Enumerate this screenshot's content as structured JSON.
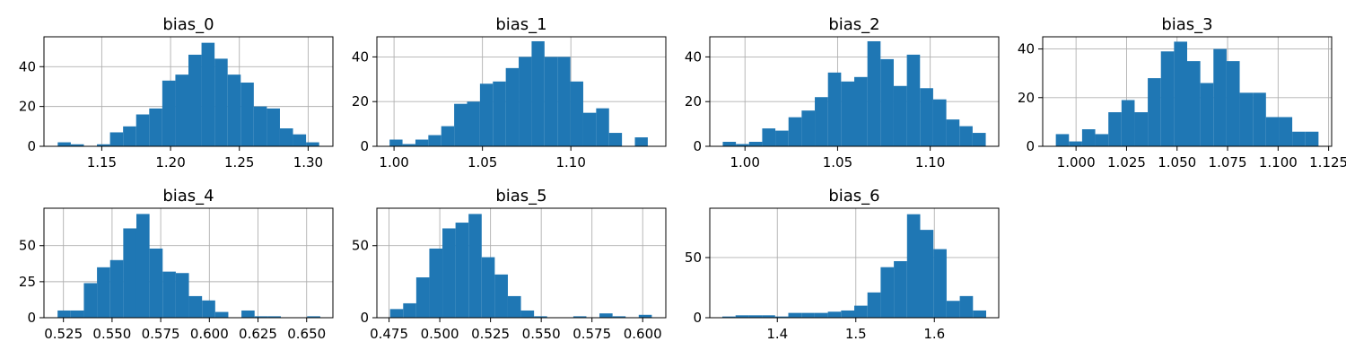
{
  "figure": {
    "bar_color": "#1f77b4",
    "grid_color": "#b0b0b0",
    "axis_color": "#000000",
    "background": "#ffffff"
  },
  "chart_data": [
    {
      "type": "bar",
      "title": "bias_0",
      "bin_start": 1.118,
      "bin_width": 0.0095,
      "values": [
        2,
        1,
        0,
        1,
        7,
        10,
        16,
        19,
        33,
        36,
        46,
        52,
        44,
        36,
        32,
        20,
        19,
        9,
        6,
        2
      ],
      "xlim": [
        1.108,
        1.318
      ],
      "ylim": [
        0,
        55
      ],
      "xticks": [
        1.15,
        1.2,
        1.25,
        1.3
      ],
      "xtick_labels": [
        "1.15",
        "1.20",
        "1.25",
        "1.30"
      ],
      "yticks": [
        0,
        20,
        40
      ],
      "ytick_labels": [
        "0",
        "20",
        "40"
      ],
      "grid": true
    },
    {
      "type": "bar",
      "title": "bias_1",
      "bin_start": 0.9975,
      "bin_width": 0.0073,
      "values": [
        3,
        1,
        3,
        5,
        9,
        19,
        20,
        28,
        29,
        35,
        40,
        47,
        40,
        40,
        29,
        15,
        17,
        6,
        0,
        4
      ],
      "xlim": [
        0.9903,
        1.1537
      ],
      "ylim": [
        0,
        49
      ],
      "xticks": [
        1.0,
        1.05,
        1.1
      ],
      "xtick_labels": [
        "1.00",
        "1.05",
        "1.10"
      ],
      "yticks": [
        0,
        20,
        40
      ],
      "ytick_labels": [
        "0",
        "20",
        "40"
      ],
      "grid": true
    },
    {
      "type": "bar",
      "title": "bias_2",
      "bin_start": 0.988,
      "bin_width": 0.0071,
      "values": [
        2,
        1,
        2,
        8,
        7,
        13,
        16,
        22,
        33,
        29,
        31,
        47,
        39,
        27,
        41,
        26,
        21,
        12,
        9,
        6
      ],
      "xlim": [
        0.981,
        1.137
      ],
      "ylim": [
        0,
        49
      ],
      "xticks": [
        1.0,
        1.05,
        1.1
      ],
      "xtick_labels": [
        "1.00",
        "1.05",
        "1.10"
      ],
      "yticks": [
        0,
        20,
        40
      ],
      "ytick_labels": [
        "0",
        "20",
        "40"
      ],
      "grid": true
    },
    {
      "type": "bar",
      "title": "bias_3",
      "bin_start": 0.99,
      "bin_width": 0.0065,
      "values": [
        5,
        2,
        7,
        5,
        14,
        19,
        14,
        28,
        39,
        43,
        35,
        26,
        40,
        35,
        22,
        22,
        12,
        12,
        6,
        6
      ],
      "xlim": [
        0.9835,
        1.1265
      ],
      "ylim": [
        0,
        45
      ],
      "xticks": [
        1.0,
        1.025,
        1.05,
        1.075,
        1.1,
        1.125
      ],
      "xtick_labels": [
        "1.000",
        "1.025",
        "1.050",
        "1.075",
        "1.100",
        "1.125"
      ],
      "yticks": [
        0,
        20,
        40
      ],
      "ytick_labels": [
        "0",
        "20",
        "40"
      ],
      "grid": true
    },
    {
      "type": "bar",
      "title": "bias_4",
      "bin_start": 0.522,
      "bin_width": 0.00675,
      "values": [
        5,
        5,
        24,
        35,
        40,
        62,
        72,
        48,
        32,
        31,
        15,
        12,
        4,
        0,
        5,
        1,
        1,
        0,
        0,
        1
      ],
      "xlim": [
        0.515,
        0.6635
      ],
      "ylim": [
        0,
        76
      ],
      "xticks": [
        0.525,
        0.55,
        0.575,
        0.6,
        0.625,
        0.65
      ],
      "xtick_labels": [
        "0.525",
        "0.550",
        "0.575",
        "0.600",
        "0.625",
        "0.650"
      ],
      "yticks": [
        0,
        25,
        50
      ],
      "ytick_labels": [
        "0",
        "25",
        "50"
      ],
      "grid": true
    },
    {
      "type": "bar",
      "title": "bias_5",
      "bin_start": 0.4755,
      "bin_width": 0.00645,
      "values": [
        6,
        10,
        28,
        48,
        62,
        66,
        72,
        42,
        30,
        15,
        5,
        1,
        0,
        0,
        1,
        0,
        3,
        1,
        0,
        2
      ],
      "xlim": [
        0.469,
        0.6114
      ],
      "ylim": [
        0,
        76
      ],
      "xticks": [
        0.475,
        0.5,
        0.525,
        0.55,
        0.575,
        0.6
      ],
      "xtick_labels": [
        "0.475",
        "0.500",
        "0.525",
        "0.550",
        "0.575",
        "0.600"
      ],
      "yticks": [
        0,
        50
      ],
      "ytick_labels": [
        "0",
        "50"
      ],
      "grid": true
    },
    {
      "type": "bar",
      "title": "bias_6",
      "bin_start": 1.33,
      "bin_width": 0.0168,
      "values": [
        1,
        2,
        2,
        2,
        1,
        4,
        4,
        4,
        5,
        6,
        10,
        21,
        42,
        47,
        86,
        73,
        57,
        14,
        18,
        6
      ],
      "xlim": [
        1.314,
        1.682
      ],
      "ylim": [
        0,
        91
      ],
      "xticks": [
        1.4,
        1.5,
        1.6
      ],
      "xtick_labels": [
        "1.4",
        "1.5",
        "1.6"
      ],
      "yticks": [
        0,
        50
      ],
      "ytick_labels": [
        "0",
        "50"
      ],
      "grid": true
    }
  ]
}
